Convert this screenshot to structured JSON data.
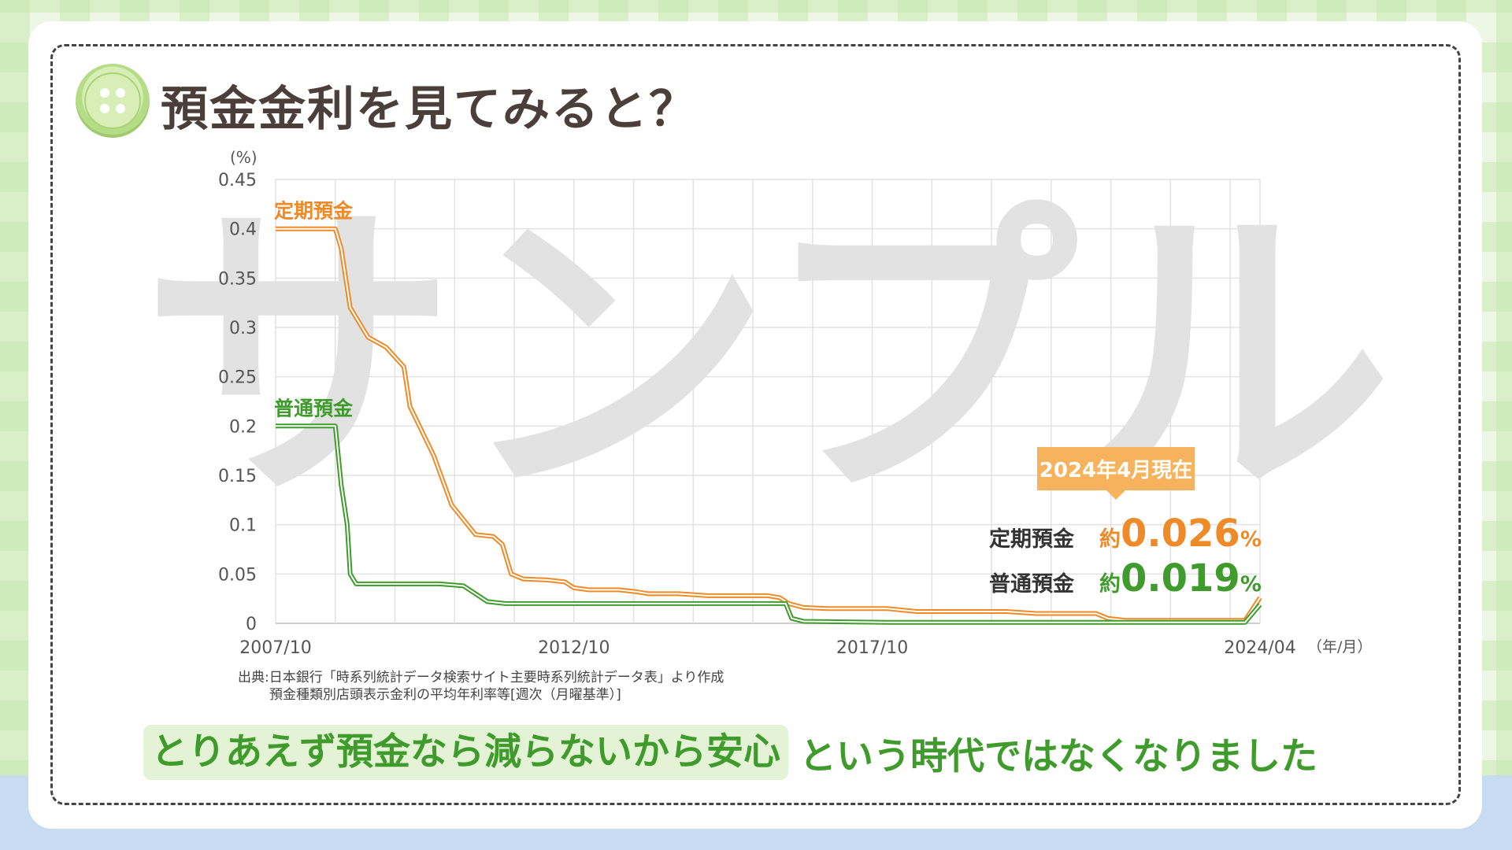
{
  "header": {
    "title": "預金金利を見てみると？"
  },
  "watermark": "サンプル",
  "chart_data": {
    "type": "line",
    "y_unit": "(%)",
    "x_unit": "（年/月）",
    "ylim": [
      0,
      0.45
    ],
    "y_ticks": [
      0,
      0.05,
      0.1,
      0.15,
      0.2,
      0.25,
      0.3,
      0.35,
      0.4,
      0.45
    ],
    "y_tick_labels": [
      "0",
      "0.05",
      "0.1",
      "0.15",
      "0.2",
      "0.25",
      "0.3",
      "0.35",
      "0.4",
      "0.45"
    ],
    "x_tick_labels": [
      {
        "t": 2007.75,
        "label": "2007/10"
      },
      {
        "t": 2012.75,
        "label": "2012/10"
      },
      {
        "t": 2017.75,
        "label": "2017/10"
      },
      {
        "t": 2024.25,
        "label": "2024/04"
      }
    ],
    "grid": true,
    "series": [
      {
        "name": "定期預金",
        "color": "#ee8a27",
        "points": [
          [
            2007.75,
            0.4
          ],
          [
            2008.0,
            0.4
          ],
          [
            2008.75,
            0.4
          ],
          [
            2008.85,
            0.38
          ],
          [
            2009.0,
            0.32
          ],
          [
            2009.3,
            0.29
          ],
          [
            2009.6,
            0.28
          ],
          [
            2009.9,
            0.26
          ],
          [
            2010.0,
            0.22
          ],
          [
            2010.4,
            0.17
          ],
          [
            2010.7,
            0.12
          ],
          [
            2011.1,
            0.09
          ],
          [
            2011.4,
            0.088
          ],
          [
            2011.55,
            0.08
          ],
          [
            2011.7,
            0.05
          ],
          [
            2011.9,
            0.045
          ],
          [
            2012.3,
            0.044
          ],
          [
            2012.6,
            0.042
          ],
          [
            2012.75,
            0.036
          ],
          [
            2013.0,
            0.034
          ],
          [
            2013.5,
            0.034
          ],
          [
            2013.8,
            0.032
          ],
          [
            2014.0,
            0.03
          ],
          [
            2014.5,
            0.03
          ],
          [
            2015.0,
            0.028
          ],
          [
            2016.0,
            0.028
          ],
          [
            2016.2,
            0.026
          ],
          [
            2016.35,
            0.02
          ],
          [
            2016.6,
            0.016
          ],
          [
            2017.0,
            0.015
          ],
          [
            2018.0,
            0.015
          ],
          [
            2018.5,
            0.012
          ],
          [
            2019.0,
            0.012
          ],
          [
            2020.0,
            0.012
          ],
          [
            2020.5,
            0.01
          ],
          [
            2021.5,
            0.01
          ],
          [
            2021.7,
            0.005
          ],
          [
            2022.0,
            0.003
          ],
          [
            2024.0,
            0.003
          ],
          [
            2024.25,
            0.026
          ]
        ]
      },
      {
        "name": "普通預金",
        "color": "#3f9b2b",
        "points": [
          [
            2007.75,
            0.2
          ],
          [
            2008.0,
            0.2
          ],
          [
            2008.75,
            0.2
          ],
          [
            2008.85,
            0.14
          ],
          [
            2008.95,
            0.1
          ],
          [
            2009.0,
            0.05
          ],
          [
            2009.1,
            0.04
          ],
          [
            2009.5,
            0.04
          ],
          [
            2010.0,
            0.04
          ],
          [
            2010.5,
            0.04
          ],
          [
            2010.9,
            0.038
          ],
          [
            2011.1,
            0.03
          ],
          [
            2011.3,
            0.022
          ],
          [
            2011.6,
            0.02
          ],
          [
            2012.0,
            0.02
          ],
          [
            2014.0,
            0.02
          ],
          [
            2016.0,
            0.02
          ],
          [
            2016.3,
            0.02
          ],
          [
            2016.4,
            0.005
          ],
          [
            2016.6,
            0.002
          ],
          [
            2018.0,
            0.001
          ],
          [
            2020.0,
            0.001
          ],
          [
            2022.0,
            0.001
          ],
          [
            2024.0,
            0.001
          ],
          [
            2024.25,
            0.019
          ]
        ]
      }
    ],
    "xlim": [
      2007.75,
      2024.25
    ]
  },
  "callout": {
    "badge": "2024年4月現在",
    "rows": [
      {
        "name": "定期預金",
        "prefix": "約",
        "value": "0.026",
        "unit": "%"
      },
      {
        "name": "普通預金",
        "prefix": "約",
        "value": "0.019",
        "unit": "%"
      }
    ]
  },
  "source": {
    "line1": "出典:日本銀行「時系列統計データ検索サイト主要時系列統計データ表」より作成",
    "line2": "預金種類別店頭表示金利の平均年利率等[週次（月曜基準）]"
  },
  "tagline": {
    "highlight": "とりあえず預金なら減らないから安心",
    "rest": "という時代ではなくなりました"
  },
  "colors": {
    "orange": "#ee8a27",
    "green": "#3f9b2b",
    "badge": "#f6b25c"
  }
}
